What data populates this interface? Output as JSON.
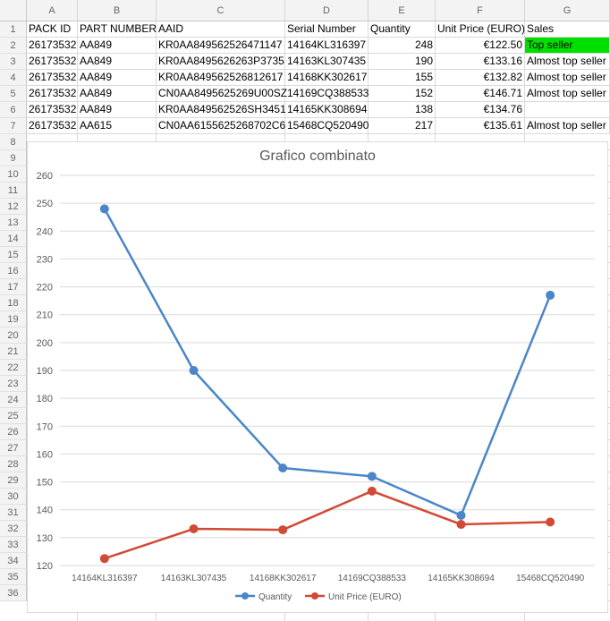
{
  "columns": [
    "A",
    "B",
    "C",
    "D",
    "E",
    "F",
    "G"
  ],
  "rows_numbers": [
    "1",
    "2",
    "3",
    "4",
    "5",
    "6",
    "7",
    "8",
    "9",
    "10",
    "11",
    "12",
    "13",
    "14",
    "15",
    "16",
    "17",
    "18",
    "19",
    "20",
    "21",
    "22",
    "23",
    "24",
    "25",
    "26",
    "27",
    "28",
    "29",
    "30",
    "31",
    "32",
    "33",
    "34",
    "35",
    "36"
  ],
  "table": {
    "headers": [
      "PACK ID",
      "PART NUMBER",
      "AAID",
      "Serial Number",
      "Quantity",
      "Unit Price (EURO)",
      "Sales"
    ],
    "rows": [
      [
        "26173532",
        "AA849",
        "KR0AA849562526471147",
        "14164KL316397",
        "248",
        "€122.50",
        "Top seller"
      ],
      [
        "26173532",
        "AA849",
        "KR0AA8495626263P3735",
        "14163KL307435",
        "190",
        "€133.16",
        "Almost top seller"
      ],
      [
        "26173532",
        "AA849",
        "KR0AA849562526812617",
        "14168KK302617",
        "155",
        "€132.82",
        "Almost top seller"
      ],
      [
        "26173532",
        "AA849",
        "CN0AA8495625269U00SZ",
        "14169CQ388533",
        "152",
        "€146.71",
        "Almost top seller"
      ],
      [
        "26173532",
        "AA849",
        "KR0AA849562526SH3451",
        "14165KK308694",
        "138",
        "€134.76",
        ""
      ],
      [
        "26173532",
        "AA615",
        "CN0AA6155625268702C6",
        "15468CQ520490",
        "217",
        "€135.61",
        "Almost top seller"
      ]
    ],
    "highlight_color": "#00e000"
  },
  "chart_data": {
    "type": "line",
    "title": "Grafico combinato",
    "categories": [
      "14164KL316397",
      "14163KL307435",
      "14168KK302617",
      "14169CQ388533",
      "14165KK308694",
      "15468CQ520490"
    ],
    "series": [
      {
        "name": "Quantity",
        "values": [
          248,
          190,
          155,
          152,
          138,
          217
        ],
        "color": "#4a86c8"
      },
      {
        "name": "Unit Price (EURO)",
        "values": [
          122.5,
          133.16,
          132.82,
          146.71,
          134.76,
          135.61
        ],
        "color": "#d24a35"
      }
    ],
    "ylim": [
      120,
      260
    ],
    "yticks": [
      120,
      130,
      140,
      150,
      160,
      170,
      180,
      190,
      200,
      210,
      220,
      230,
      240,
      250,
      260
    ],
    "grid": true,
    "legend": "bottom"
  }
}
